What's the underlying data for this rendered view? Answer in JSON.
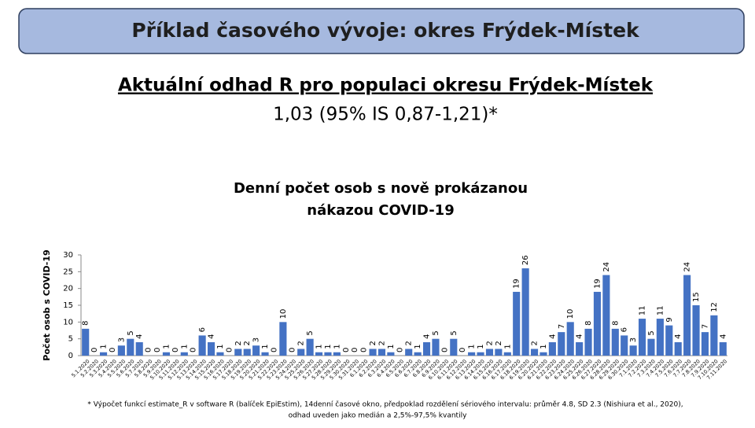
{
  "header": {
    "title": "Příklad časového vývoje: okres Frýdek-Místek"
  },
  "estimate": {
    "heading": "Aktuální odhad R pro populaci okresu Frýdek-Místek",
    "value": "1,03 (95% IS 0,87-1,21)*"
  },
  "chart_data": {
    "type": "bar",
    "title": [
      "Denní počet osob s nově prokázanou",
      "nákazou COVID-19"
    ],
    "y_label": "Počet osob s COVID-19",
    "color": "#4472c4",
    "ylim": [
      0,
      30
    ],
    "yticks": [
      0,
      5,
      10,
      15,
      20,
      25,
      30
    ],
    "grid": false,
    "categories": [
      "5.1.2020",
      "5.2.2020",
      "5.3.2020",
      "5.4.2020",
      "5.5.2020",
      "5.6.2020",
      "5.7.2020",
      "5.8.2020",
      "5.9.2020",
      "5.10.2020",
      "5.11.2020",
      "5.12.2020",
      "5.13.2020",
      "5.14.2020",
      "5.15.2020",
      "5.16.2020",
      "5.17.2020",
      "5.18.2020",
      "5.19.2020",
      "5.20.2020",
      "5.21.2020",
      "5.22.2020",
      "5.23.2020",
      "5.24.2020",
      "5.25.2020",
      "5.26.2020",
      "5.27.2020",
      "5.28.2020",
      "5.29.2020",
      "5.30.2020",
      "5.31.2020",
      "6.1.2020",
      "6.2.2020",
      "6.3.2020",
      "6.4.2020",
      "6.5.2020",
      "6.6.2020",
      "6.7.2020",
      "6.8.2020",
      "6.9.2020",
      "6.10.2020",
      "6.11.2020",
      "6.12.2020",
      "6.13.2020",
      "6.14.2020",
      "6.15.2020",
      "6.16.2020",
      "6.17.2020",
      "6.18.2020",
      "6.19.2020",
      "6.20.2020",
      "6.21.2020",
      "6.22.2020",
      "6.23.2020",
      "6.24.2020",
      "6.25.2020",
      "6.26.2020",
      "6.27.2020",
      "6.28.2020",
      "6.29.2020",
      "6.30.2020",
      "7.1.2020",
      "7.2.2020",
      "7.3.2020",
      "7.4.2020",
      "7.5.2020",
      "7.6.2020",
      "7.7.2020",
      "7.8.2020",
      "7.9.2020",
      "7.10.2020",
      "7.11.2020"
    ],
    "values": [
      8,
      0,
      1,
      0,
      3,
      5,
      4,
      0,
      0,
      1,
      0,
      1,
      0,
      6,
      4,
      1,
      0,
      2,
      2,
      3,
      1,
      0,
      10,
      0,
      2,
      5,
      1,
      1,
      1,
      0,
      0,
      0,
      2,
      2,
      1,
      0,
      2,
      1,
      4,
      5,
      0,
      5,
      0,
      1,
      1,
      2,
      2,
      1,
      19,
      26,
      2,
      1,
      4,
      7,
      10,
      4,
      8,
      19,
      24,
      8,
      6,
      3,
      11,
      5,
      11,
      9,
      4,
      24,
      15,
      7,
      12,
      4
    ]
  },
  "footnote": [
    "* Výpočet funkcí estimate_R v software R (balíček EpiEstim), 14denní časové okno, předpoklad rozdělení sériového intervalu: průměr 4.8, SD 2.3 (Nishiura et al., 2020),",
    "odhad uveden jako medián a 2,5%-97,5% kvantily"
  ]
}
